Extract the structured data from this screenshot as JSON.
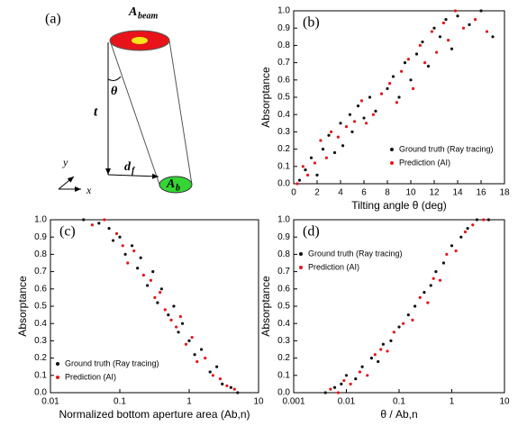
{
  "diagram": {
    "panel_label": "(a)",
    "beam_label": {
      "text": "A",
      "sub": "beam"
    },
    "angle_label": "θ",
    "height_label": "t",
    "offset_label": {
      "text": "d",
      "sub": "f"
    },
    "bottom_label": {
      "text": "A",
      "sub": "b"
    },
    "axis_y": "y",
    "axis_x": "x"
  },
  "chart_data": [
    {
      "type": "scatter",
      "panel_label": "(b)",
      "x_label": "Tilting angle θ (deg)",
      "y_label": "Absorptance",
      "x_scale": "linear",
      "legend": "lower right",
      "xlim": [
        0,
        18
      ],
      "xticks": [
        0,
        2,
        4,
        6,
        8,
        10,
        12,
        14,
        16,
        18
      ],
      "ylim": [
        0,
        1
      ],
      "yticks": [
        {
          "value": 0,
          "label": "0.0"
        },
        0.1,
        0.2,
        0.3,
        0.4,
        0.5,
        0.6,
        0.7,
        0.8,
        0.9,
        {
          "value": 1,
          "label": "1.0"
        }
      ],
      "series": [
        {
          "name": "Ground truth (Ray tracing)",
          "color": "#111111",
          "x": [
            0.5,
            1,
            1.5,
            2,
            2.5,
            3,
            3.5,
            4,
            4.2,
            4.8,
            5,
            5.5,
            6,
            6.5,
            7,
            8,
            8.5,
            9,
            9.5,
            10,
            10.5,
            11,
            11.5,
            12,
            12.5,
            13,
            13.5,
            14,
            15,
            16,
            17
          ],
          "y": [
            0.02,
            0.08,
            0.15,
            0.05,
            0.2,
            0.28,
            0.18,
            0.35,
            0.22,
            0.4,
            0.3,
            0.45,
            0.38,
            0.5,
            0.42,
            0.55,
            0.62,
            0.5,
            0.7,
            0.6,
            0.75,
            0.82,
            0.68,
            0.9,
            0.85,
            0.95,
            0.78,
            0.97,
            0.92,
            1.0,
            0.85
          ]
        },
        {
          "name": "Prediction (AI)",
          "color": "#e8141a",
          "x": [
            0.3,
            0.8,
            1.2,
            1.8,
            2.3,
            2.8,
            3.2,
            3.8,
            4.5,
            5.2,
            5.8,
            6.2,
            6.8,
            7.5,
            8.2,
            8.8,
            9.2,
            9.8,
            10.2,
            10.8,
            11.2,
            11.8,
            12.2,
            12.8,
            13.2,
            13.8,
            14.5,
            15.5,
            16.5
          ],
          "y": [
            0.0,
            0.1,
            0.05,
            0.12,
            0.25,
            0.15,
            0.3,
            0.27,
            0.33,
            0.36,
            0.48,
            0.35,
            0.4,
            0.52,
            0.58,
            0.47,
            0.65,
            0.72,
            0.55,
            0.8,
            0.7,
            0.88,
            0.76,
            0.93,
            0.83,
            1.0,
            0.9,
            0.95,
            0.88
          ]
        }
      ]
    },
    {
      "type": "scatter",
      "panel_label": "(c)",
      "x_label": "Normalized bottom aperture area (Ab,n)",
      "y_label": "Absorptance",
      "x_scale": "log",
      "legend": "lower left",
      "xlim": [
        0.01,
        10
      ],
      "xticks": [
        0.01,
        0.1,
        1,
        10
      ],
      "ylim": [
        0,
        1
      ],
      "yticks": [
        {
          "value": 0,
          "label": "0.0"
        },
        0.1,
        0.2,
        0.3,
        0.4,
        0.5,
        0.6,
        0.7,
        0.8,
        0.9,
        {
          "value": 1,
          "label": "1.0"
        }
      ],
      "series": [
        {
          "name": "Ground truth (Ray tracing)",
          "color": "#111111",
          "x": [
            0.03,
            0.05,
            0.07,
            0.08,
            0.1,
            0.12,
            0.15,
            0.18,
            0.2,
            0.25,
            0.3,
            0.35,
            0.4,
            0.5,
            0.6,
            0.7,
            0.8,
            1,
            1.2,
            1.5,
            2,
            2.5,
            3,
            4,
            5
          ],
          "y": [
            1.0,
            0.98,
            0.95,
            0.88,
            0.9,
            0.8,
            0.85,
            0.72,
            0.78,
            0.62,
            0.7,
            0.52,
            0.6,
            0.45,
            0.5,
            0.35,
            0.4,
            0.3,
            0.22,
            0.25,
            0.12,
            0.15,
            0.05,
            0.03,
            0.0
          ]
        },
        {
          "name": "Prediction (AI)",
          "color": "#e8141a",
          "x": [
            0.04,
            0.06,
            0.09,
            0.11,
            0.13,
            0.16,
            0.22,
            0.28,
            0.32,
            0.38,
            0.45,
            0.55,
            0.65,
            0.75,
            0.9,
            1.1,
            1.3,
            1.7,
            2.2,
            2.8,
            3.5,
            4.5
          ],
          "y": [
            0.97,
            1.0,
            0.92,
            0.85,
            0.75,
            0.82,
            0.68,
            0.65,
            0.55,
            0.58,
            0.48,
            0.42,
            0.38,
            0.44,
            0.28,
            0.32,
            0.18,
            0.2,
            0.1,
            0.08,
            0.04,
            0.02
          ]
        }
      ]
    },
    {
      "type": "scatter",
      "panel_label": "(d)",
      "x_label": "θ / Ab,n",
      "y_label": "Absorptance",
      "x_scale": "log",
      "legend": "upper left",
      "xlim": [
        0.001,
        10
      ],
      "xticks": [
        0.001,
        0.01,
        0.1,
        1,
        10
      ],
      "ylim": [
        0,
        1
      ],
      "yticks": [
        {
          "value": 0,
          "label": "0.0"
        },
        0.1,
        0.2,
        0.3,
        0.4,
        0.5,
        0.6,
        0.7,
        0.8,
        0.9,
        {
          "value": 1,
          "label": "1.0"
        }
      ],
      "series": [
        {
          "name": "Ground truth (Ray tracing)",
          "color": "#111111",
          "x": [
            0.004,
            0.006,
            0.008,
            0.01,
            0.015,
            0.02,
            0.03,
            0.04,
            0.05,
            0.07,
            0.1,
            0.15,
            0.2,
            0.3,
            0.4,
            0.5,
            0.7,
            1,
            1.5,
            2,
            3,
            5
          ],
          "y": [
            0.0,
            0.03,
            0.05,
            0.1,
            0.08,
            0.15,
            0.2,
            0.18,
            0.28,
            0.3,
            0.38,
            0.45,
            0.5,
            0.58,
            0.62,
            0.7,
            0.75,
            0.85,
            0.9,
            0.95,
            1.0,
            1.0
          ]
        },
        {
          "name": "Prediction (AI)",
          "color": "#e8141a",
          "x": [
            0.005,
            0.007,
            0.009,
            0.012,
            0.018,
            0.025,
            0.035,
            0.045,
            0.06,
            0.08,
            0.12,
            0.18,
            0.25,
            0.35,
            0.45,
            0.6,
            0.8,
            1.2,
            1.8,
            2.5,
            4
          ],
          "y": [
            0.02,
            0.0,
            0.07,
            0.05,
            0.12,
            0.1,
            0.22,
            0.25,
            0.24,
            0.35,
            0.4,
            0.42,
            0.55,
            0.52,
            0.66,
            0.65,
            0.8,
            0.82,
            0.93,
            0.97,
            1.0
          ]
        }
      ]
    }
  ]
}
